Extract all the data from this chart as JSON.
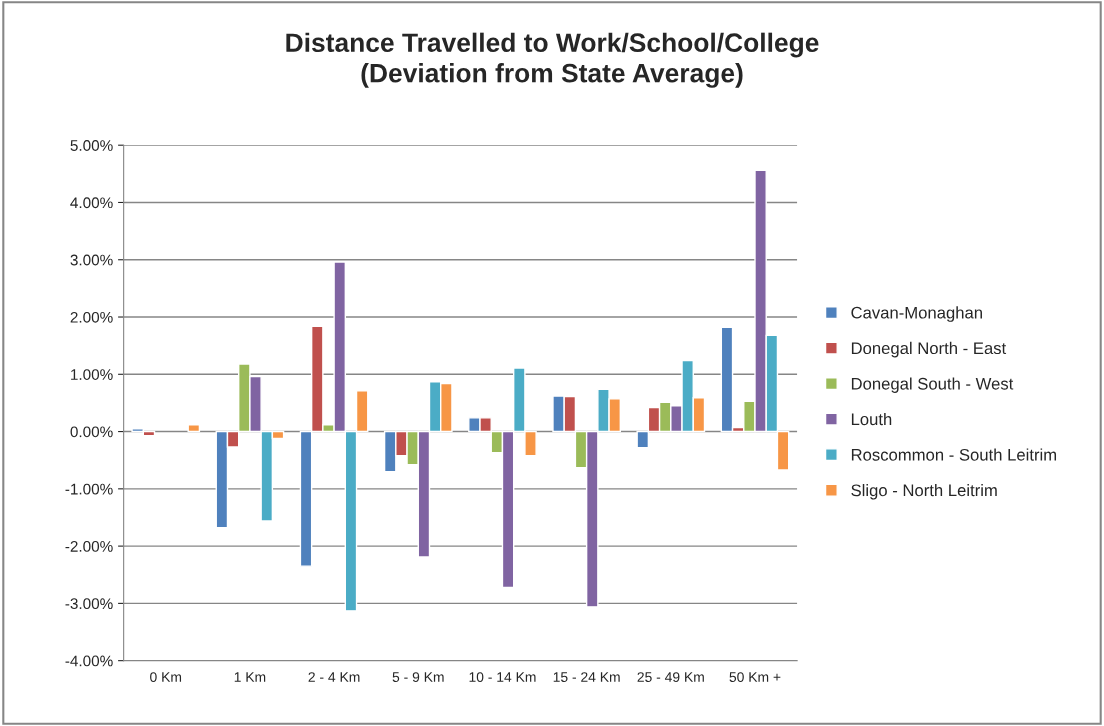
{
  "chart_data": {
    "type": "bar",
    "title": "Distance Travelled to Work/School/College\n(Deviation from State Average)",
    "categories": [
      "0 Km",
      "1 Km",
      "2 - 4 Km",
      "5 - 9 Km",
      "10 - 14 Km",
      "15 - 24 Km",
      "25 - 49 Km",
      "50 Km +"
    ],
    "series": [
      {
        "name": "Cavan-Monaghan",
        "color": "#4f81bd",
        "values": [
          0.05,
          -1.68,
          -2.35,
          -0.7,
          0.24,
          0.62,
          -0.28,
          1.82
        ]
      },
      {
        "name": "Donegal North - East",
        "color": "#c0504d",
        "values": [
          -0.07,
          -0.27,
          1.84,
          -0.42,
          0.24,
          0.61,
          0.42,
          0.07
        ]
      },
      {
        "name": "Donegal South - West",
        "color": "#9bbb59",
        "values": [
          null,
          1.18,
          0.12,
          -0.58,
          -0.37,
          -0.63,
          0.51,
          0.53
        ]
      },
      {
        "name": "Louth",
        "color": "#8064a2",
        "values": [
          null,
          0.96,
          2.96,
          -2.19,
          -2.72,
          -3.06,
          0.45,
          4.56
        ]
      },
      {
        "name": "Roscommon - South Leitrim",
        "color": "#4bacc6",
        "values": [
          null,
          -1.56,
          -3.13,
          0.87,
          1.11,
          0.74,
          1.24,
          1.68
        ]
      },
      {
        "name": "Sligo - North Leitrim",
        "color": "#f79646",
        "values": [
          0.12,
          -0.12,
          0.71,
          0.84,
          -0.42,
          0.57,
          0.59,
          -0.67
        ]
      }
    ],
    "ylim": [
      -4,
      5
    ],
    "yticks": [
      {
        "value": -4,
        "label": "-4.00%"
      },
      {
        "value": -3,
        "label": "-3.00%"
      },
      {
        "value": -2,
        "label": "-2.00%"
      },
      {
        "value": -1,
        "label": "-1.00%"
      },
      {
        "value": 0,
        "label": "0.00%"
      },
      {
        "value": 1,
        "label": "1.00%"
      },
      {
        "value": 2,
        "label": "2.00%"
      },
      {
        "value": 3,
        "label": "3.00%"
      },
      {
        "value": 4,
        "label": "4.00%"
      },
      {
        "value": 5,
        "label": "5.00%"
      }
    ],
    "grid": "y",
    "legend": "right"
  }
}
